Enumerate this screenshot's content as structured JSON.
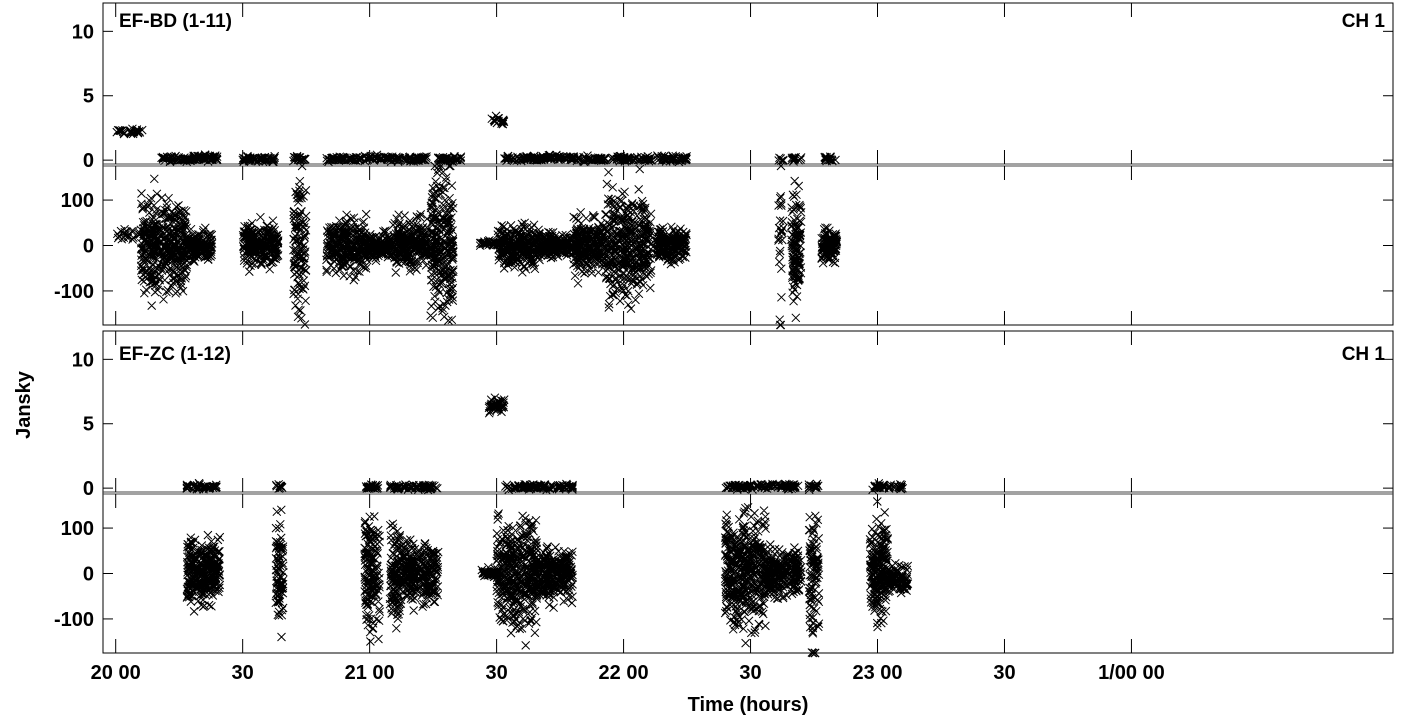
{
  "chart_data": {
    "type": "scatter",
    "marker": "x",
    "color": "#000000",
    "ylabel": "Jansky",
    "xlabel": "Time (hours)",
    "xlim_hours": [
      19.95,
      25.03
    ],
    "x_ticks": [
      {
        "label": "20 00",
        "hour": 20.0
      },
      {
        "label": "30",
        "hour": 20.5
      },
      {
        "label": "21 00",
        "hour": 21.0
      },
      {
        "label": "30",
        "hour": 21.5
      },
      {
        "label": "22 00",
        "hour": 22.0
      },
      {
        "label": "30",
        "hour": 22.5
      },
      {
        "label": "23 00",
        "hour": 23.0
      },
      {
        "label": "30",
        "hour": 23.5
      },
      {
        "label": "1/00 00",
        "hour": 24.0
      }
    ],
    "panels": [
      {
        "baseline": "EF-BD (1-11)",
        "channel": "CH 1",
        "amplitude": {
          "ylim": [
            -0.3,
            12.2
          ],
          "yticks": [
            "0",
            "5",
            "10"
          ],
          "yticks_values": [
            0,
            5,
            10
          ],
          "clusters": [
            {
              "t0": 20.0,
              "t1": 20.04,
              "value": 2.2,
              "spread": 0.1,
              "n": 10
            },
            {
              "t0": 20.04,
              "t1": 20.12,
              "value": 2.2,
              "spread": 0.1,
              "n": 20
            },
            {
              "t0": 20.18,
              "t1": 20.31,
              "value": 0.1,
              "spread": 0.1,
              "n": 60
            },
            {
              "t0": 20.31,
              "t1": 20.4,
              "value": 0.15,
              "spread": 0.12,
              "n": 50
            },
            {
              "t0": 20.5,
              "t1": 20.63,
              "value": 0.1,
              "spread": 0.1,
              "n": 60
            },
            {
              "t0": 20.7,
              "t1": 20.75,
              "value": 0.1,
              "spread": 0.1,
              "n": 20
            },
            {
              "t0": 20.83,
              "t1": 20.97,
              "value": 0.1,
              "spread": 0.1,
              "n": 60
            },
            {
              "t0": 20.98,
              "t1": 21.12,
              "value": 0.15,
              "spread": 0.1,
              "n": 60
            },
            {
              "t0": 21.13,
              "t1": 21.23,
              "value": 0.1,
              "spread": 0.1,
              "n": 45
            },
            {
              "t0": 21.27,
              "t1": 21.36,
              "value": 0.1,
              "spread": 0.1,
              "n": 45
            },
            {
              "t0": 21.47,
              "t1": 21.53,
              "value": 3.1,
              "spread": 0.15,
              "n": 20
            },
            {
              "t0": 21.53,
              "t1": 21.68,
              "value": 0.1,
              "spread": 0.1,
              "n": 60
            },
            {
              "t0": 21.68,
              "t1": 21.81,
              "value": 0.15,
              "spread": 0.1,
              "n": 55
            },
            {
              "t0": 21.81,
              "t1": 21.93,
              "value": 0.1,
              "spread": 0.1,
              "n": 50
            },
            {
              "t0": 21.95,
              "t1": 22.11,
              "value": 0.1,
              "spread": 0.1,
              "n": 65
            },
            {
              "t0": 22.13,
              "t1": 22.25,
              "value": 0.1,
              "spread": 0.1,
              "n": 55
            },
            {
              "t0": 22.61,
              "t1": 22.63,
              "value": 0.1,
              "spread": 0.1,
              "n": 6
            },
            {
              "t0": 22.66,
              "t1": 22.7,
              "value": 0.1,
              "spread": 0.1,
              "n": 14
            },
            {
              "t0": 22.79,
              "t1": 22.84,
              "value": 0.1,
              "spread": 0.1,
              "n": 18
            }
          ]
        },
        "phase": {
          "ylim": [
            -175,
            175
          ],
          "yticks": [
            "-100",
            "0",
            "100"
          ],
          "yticks_values": [
            -100,
            0,
            100
          ],
          "clusters": [
            {
              "t0": 20.0,
              "t1": 20.1,
              "value": 25,
              "spread": 6,
              "n": 20
            },
            {
              "t0": 20.1,
              "t1": 20.28,
              "value": 0,
              "spread": 50,
              "n": 400
            },
            {
              "t0": 20.28,
              "t1": 20.38,
              "value": 0,
              "spread": 14,
              "n": 170
            },
            {
              "t0": 20.5,
              "t1": 20.64,
              "value": 0,
              "spread": 22,
              "n": 250
            },
            {
              "t0": 20.7,
              "t1": 20.75,
              "value": 0,
              "spread": 70,
              "n": 120
            },
            {
              "t0": 20.83,
              "t1": 20.99,
              "value": 0,
              "spread": 30,
              "n": 270
            },
            {
              "t0": 20.99,
              "t1": 21.09,
              "value": -2,
              "spread": 12,
              "n": 160
            },
            {
              "t0": 21.09,
              "t1": 21.23,
              "value": 5,
              "spread": 28,
              "n": 250
            },
            {
              "t0": 21.24,
              "t1": 21.33,
              "value": 0,
              "spread": 75,
              "n": 260
            },
            {
              "t0": 21.43,
              "t1": 21.5,
              "value": 5,
              "spread": 3,
              "n": 30
            },
            {
              "t0": 21.5,
              "t1": 21.67,
              "value": 0,
              "spread": 22,
              "n": 270
            },
            {
              "t0": 21.67,
              "t1": 21.8,
              "value": 0,
              "spread": 12,
              "n": 170
            },
            {
              "t0": 21.8,
              "t1": 21.93,
              "value": 0,
              "spread": 30,
              "n": 250
            },
            {
              "t0": 21.93,
              "t1": 22.11,
              "value": 0,
              "spread": 55,
              "n": 380
            },
            {
              "t0": 22.13,
              "t1": 22.25,
              "value": 0,
              "spread": 18,
              "n": 200
            },
            {
              "t0": 22.61,
              "t1": 22.63,
              "value": 0,
              "spread": 80,
              "n": 25
            },
            {
              "t0": 22.66,
              "t1": 22.7,
              "value": 0,
              "spread": 70,
              "n": 120
            },
            {
              "t0": 22.78,
              "t1": 22.84,
              "value": 0,
              "spread": 16,
              "n": 120
            }
          ]
        }
      },
      {
        "baseline": "EF-ZC (1-12)",
        "channel": "CH 1",
        "amplitude": {
          "ylim": [
            -0.3,
            12.2
          ],
          "yticks": [
            "0",
            "5",
            "10"
          ],
          "yticks_values": [
            0,
            5,
            10
          ],
          "clusters": [
            {
              "t0": 20.28,
              "t1": 20.4,
              "value": 0.1,
              "spread": 0.1,
              "n": 50
            },
            {
              "t0": 20.63,
              "t1": 20.66,
              "value": 0.1,
              "spread": 0.1,
              "n": 12
            },
            {
              "t0": 20.98,
              "t1": 21.04,
              "value": 0.1,
              "spread": 0.1,
              "n": 25
            },
            {
              "t0": 21.08,
              "t1": 21.12,
              "value": 0.1,
              "spread": 0.1,
              "n": 18
            },
            {
              "t0": 21.13,
              "t1": 21.27,
              "value": 0.1,
              "spread": 0.1,
              "n": 55
            },
            {
              "t0": 21.47,
              "t1": 21.53,
              "value": 6.4,
              "spread": 0.3,
              "n": 50
            },
            {
              "t0": 21.53,
              "t1": 21.68,
              "value": 0.1,
              "spread": 0.1,
              "n": 60
            },
            {
              "t0": 21.68,
              "t1": 21.8,
              "value": 0.1,
              "spread": 0.1,
              "n": 50
            },
            {
              "t0": 22.4,
              "t1": 22.56,
              "value": 0.1,
              "spread": 0.1,
              "n": 60
            },
            {
              "t0": 22.56,
              "t1": 22.69,
              "value": 0.15,
              "spread": 0.1,
              "n": 55
            },
            {
              "t0": 22.73,
              "t1": 22.77,
              "value": 0.1,
              "spread": 0.1,
              "n": 15
            },
            {
              "t0": 22.98,
              "t1": 23.03,
              "value": 0.1,
              "spread": 0.1,
              "n": 20
            },
            {
              "t0": 23.04,
              "t1": 23.1,
              "value": 0.1,
              "spread": 0.1,
              "n": 20
            }
          ]
        },
        "phase": {
          "ylim": [
            -175,
            175
          ],
          "yticks": [
            "-100",
            "0",
            "100"
          ],
          "yticks_values": [
            -100,
            0,
            100
          ],
          "clusters": [
            {
              "t0": 20.28,
              "t1": 20.41,
              "value": 5,
              "spread": 35,
              "n": 300
            },
            {
              "t0": 20.63,
              "t1": 20.66,
              "value": 0,
              "spread": 60,
              "n": 80
            },
            {
              "t0": 20.98,
              "t1": 21.04,
              "value": 0,
              "spread": 60,
              "n": 160
            },
            {
              "t0": 21.08,
              "t1": 21.12,
              "value": 0,
              "spread": 55,
              "n": 110
            },
            {
              "t0": 21.12,
              "t1": 21.27,
              "value": 5,
              "spread": 30,
              "n": 260
            },
            {
              "t0": 21.44,
              "t1": 21.5,
              "value": 0,
              "spread": 5,
              "n": 40
            },
            {
              "t0": 21.5,
              "t1": 21.66,
              "value": 0,
              "spread": 60,
              "n": 400
            },
            {
              "t0": 21.66,
              "t1": 21.8,
              "value": 0,
              "spread": 28,
              "n": 260
            },
            {
              "t0": 22.4,
              "t1": 22.56,
              "value": 5,
              "spread": 60,
              "n": 420
            },
            {
              "t0": 22.56,
              "t1": 22.7,
              "value": 0,
              "spread": 24,
              "n": 260
            },
            {
              "t0": 22.73,
              "t1": 22.77,
              "value": 0,
              "spread": 80,
              "n": 100
            },
            {
              "t0": 22.97,
              "t1": 23.04,
              "value": 10,
              "spread": 55,
              "n": 200
            },
            {
              "t0": 23.04,
              "t1": 23.12,
              "value": -10,
              "spread": 15,
              "n": 100
            }
          ]
        }
      }
    ]
  }
}
